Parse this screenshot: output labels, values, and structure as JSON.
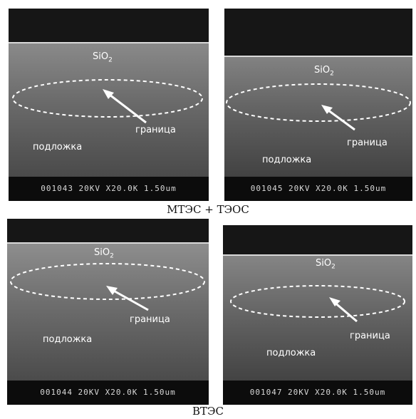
{
  "groups": [
    {
      "caption": "МТЭС + ТЭОС",
      "panels": [
        {
          "layer_label": "SiO",
          "layer_sub": "2",
          "interface_label": "граница",
          "substrate_label": "подложка",
          "databar": "001043 20KV X20.0K 1.50um"
        },
        {
          "layer_label": "SiO",
          "layer_sub": "2",
          "interface_label": "граница",
          "substrate_label": "подложка",
          "databar": "001045 20KV X20.0K 1.50um"
        }
      ]
    },
    {
      "caption": "ВТЭС",
      "panels": [
        {
          "layer_label": "SiO",
          "layer_sub": "2",
          "interface_label": "граница",
          "substrate_label": "подложка",
          "databar": "001044 20KV X20.0K 1.50um"
        },
        {
          "layer_label": "SiO",
          "layer_sub": "2",
          "interface_label": "граница",
          "substrate_label": "подложка",
          "databar": "001047 20KV X20.0K 1.50um"
        }
      ]
    }
  ]
}
